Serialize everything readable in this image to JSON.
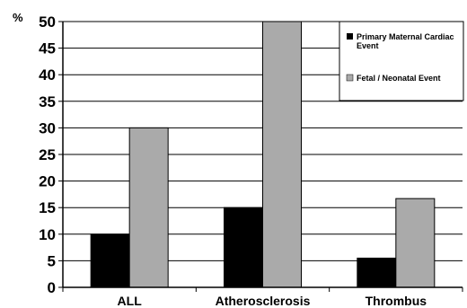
{
  "chart_data": {
    "type": "bar",
    "title": "",
    "xlabel": "",
    "ylabel": "%",
    "ylim": [
      0,
      50
    ],
    "yticks": [
      "0",
      "5",
      "10",
      "15",
      "20",
      "25",
      "30",
      "35",
      "40",
      "45",
      "50"
    ],
    "grid": true,
    "legend_position": "top-right",
    "categories": [
      "ALL",
      "Atherosclerosis",
      "Thrombus"
    ],
    "series": [
      {
        "name": "Primary Maternal Cardiac Event",
        "values": [
          10,
          15,
          5.5
        ],
        "color": "#000000"
      },
      {
        "name": "Fetal / Neonatal Event",
        "values": [
          30,
          50,
          16.7
        ],
        "color": "#aaaaaa"
      }
    ]
  }
}
